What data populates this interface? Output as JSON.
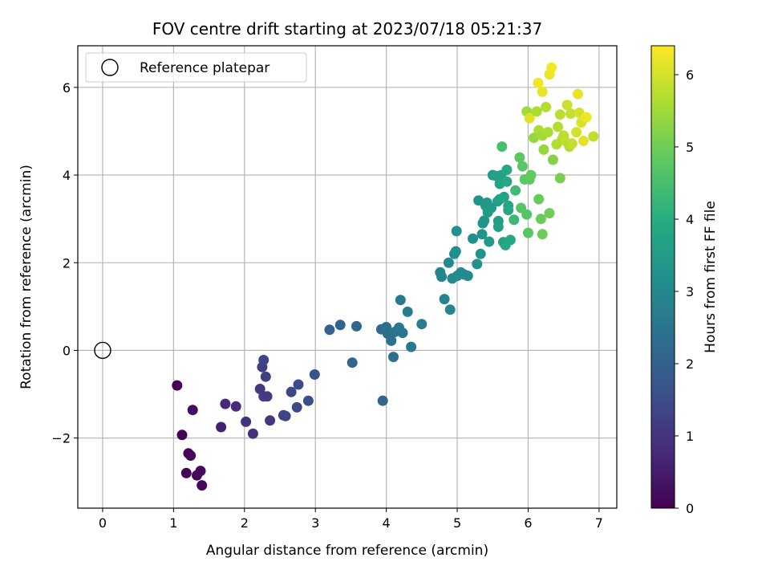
{
  "chart_data": {
    "type": "scatter",
    "title": "FOV centre drift starting at 2023/07/18 05:21:37",
    "xlabel": "Angular distance from reference (arcmin)",
    "ylabel": "Rotation from reference (arcmin)",
    "xlim": [
      -0.35,
      7.25
    ],
    "ylim": [
      -3.6,
      6.95
    ],
    "xticks": [
      0,
      1,
      2,
      3,
      4,
      5,
      6,
      7
    ],
    "yticks": [
      -2,
      0,
      2,
      4,
      6
    ],
    "ytick_labels": [
      "−2",
      "0",
      "2",
      "4",
      "6"
    ],
    "grid": true,
    "legend": {
      "position": "top-left",
      "entries": [
        "Reference platepar"
      ]
    },
    "reference_point": {
      "name": "Reference platepar",
      "x": 0,
      "y": 0
    },
    "colorbar": {
      "label": "Hours from first FF file",
      "range": [
        0,
        6.4
      ],
      "ticks": [
        0,
        1,
        2,
        3,
        4,
        5,
        6
      ],
      "colormap": "viridis"
    },
    "series": [
      {
        "points": [
          [
            1.05,
            -0.8,
            0.02
          ],
          [
            1.12,
            -1.93,
            0.05
          ],
          [
            1.18,
            -2.8,
            0.08
          ],
          [
            1.21,
            -2.35,
            0.1
          ],
          [
            1.24,
            -2.4,
            0.12
          ],
          [
            1.27,
            -1.36,
            0.2
          ],
          [
            1.33,
            -2.85,
            0.15
          ],
          [
            1.38,
            -2.75,
            0.18
          ],
          [
            1.4,
            -3.08,
            0.14
          ],
          [
            1.67,
            -1.75,
            0.6
          ],
          [
            1.73,
            -1.22,
            0.75
          ],
          [
            1.88,
            -1.28,
            0.8
          ],
          [
            2.02,
            -1.63,
            0.95
          ],
          [
            2.12,
            -1.9,
            0.9
          ],
          [
            2.22,
            -0.88,
            1.1
          ],
          [
            2.25,
            -0.38,
            1.2
          ],
          [
            2.27,
            -0.22,
            1.3
          ],
          [
            2.27,
            -1.05,
            1.15
          ],
          [
            2.3,
            -0.6,
            1.25
          ],
          [
            2.32,
            -1.05,
            1.1
          ],
          [
            2.36,
            -1.6,
            1.05
          ],
          [
            2.55,
            -1.48,
            1.3
          ],
          [
            2.58,
            -1.5,
            1.35
          ],
          [
            2.66,
            -0.95,
            1.4
          ],
          [
            2.74,
            -1.3,
            1.45
          ],
          [
            2.76,
            -0.78,
            1.5
          ],
          [
            2.9,
            -1.15,
            1.55
          ],
          [
            2.99,
            -0.55,
            1.65
          ],
          [
            3.2,
            0.47,
            2.0
          ],
          [
            3.35,
            0.58,
            2.05
          ],
          [
            3.52,
            -0.28,
            2.1
          ],
          [
            3.58,
            0.55,
            2.15
          ],
          [
            3.93,
            0.48,
            2.2
          ],
          [
            3.95,
            -1.15,
            2.1
          ],
          [
            4.0,
            0.53,
            2.35
          ],
          [
            4.02,
            0.38,
            2.3
          ],
          [
            4.07,
            0.22,
            2.4
          ],
          [
            4.1,
            -0.15,
            2.4
          ],
          [
            4.12,
            0.42,
            2.45
          ],
          [
            4.16,
            0.45,
            2.5
          ],
          [
            4.18,
            0.52,
            2.55
          ],
          [
            4.2,
            1.15,
            2.6
          ],
          [
            4.23,
            0.4,
            2.5
          ],
          [
            4.3,
            0.88,
            2.65
          ],
          [
            4.35,
            0.08,
            2.6
          ],
          [
            4.5,
            0.6,
            2.7
          ],
          [
            4.76,
            1.78,
            2.9
          ],
          [
            4.78,
            1.68,
            2.95
          ],
          [
            4.82,
            1.17,
            2.85
          ],
          [
            4.88,
            2.0,
            3.0
          ],
          [
            4.9,
            0.93,
            2.9
          ],
          [
            4.93,
            1.64,
            3.0
          ],
          [
            4.96,
            2.2,
            3.1
          ],
          [
            4.98,
            2.26,
            3.15
          ],
          [
            4.99,
            2.72,
            3.2
          ],
          [
            5.0,
            1.7,
            3.1
          ],
          [
            5.05,
            1.78,
            3.15
          ],
          [
            5.1,
            1.73,
            3.1
          ],
          [
            5.15,
            1.7,
            3.05
          ],
          [
            5.22,
            2.55,
            3.2
          ],
          [
            5.28,
            1.97,
            3.25
          ],
          [
            5.3,
            3.42,
            3.3
          ],
          [
            5.33,
            2.2,
            3.3
          ],
          [
            5.35,
            2.65,
            3.35
          ],
          [
            5.36,
            2.9,
            3.35
          ],
          [
            5.38,
            2.96,
            3.35
          ],
          [
            5.4,
            3.3,
            3.45
          ],
          [
            5.42,
            3.37,
            3.4
          ],
          [
            5.43,
            3.15,
            3.5
          ],
          [
            5.45,
            2.48,
            3.45
          ],
          [
            5.48,
            3.25,
            3.45
          ],
          [
            5.5,
            4.0,
            3.5
          ],
          [
            5.55,
            3.98,
            3.65
          ],
          [
            5.57,
            3.4,
            3.55
          ],
          [
            5.58,
            2.95,
            3.6
          ],
          [
            5.58,
            2.82,
            3.6
          ],
          [
            5.6,
            3.45,
            3.65
          ],
          [
            5.6,
            3.8,
            3.7
          ],
          [
            5.62,
            4.0,
            3.7
          ],
          [
            5.63,
            4.65,
            4.5
          ],
          [
            5.65,
            2.47,
            3.7
          ],
          [
            5.66,
            3.5,
            3.75
          ],
          [
            5.68,
            2.4,
            3.8
          ],
          [
            5.7,
            4.12,
            3.8
          ],
          [
            5.7,
            3.85,
            3.8
          ],
          [
            5.72,
            3.3,
            3.8
          ],
          [
            5.72,
            3.2,
            3.85
          ],
          [
            5.75,
            2.52,
            3.9
          ],
          [
            5.8,
            2.98,
            4.3
          ],
          [
            5.82,
            3.65,
            4.4
          ],
          [
            5.88,
            4.4,
            4.8
          ],
          [
            5.9,
            3.25,
            4.7
          ],
          [
            5.92,
            4.2,
            4.75
          ],
          [
            5.95,
            3.9,
            4.8
          ],
          [
            5.98,
            3.1,
            4.7
          ],
          [
            6.0,
            2.68,
            4.75
          ],
          [
            6.02,
            3.9,
            4.8
          ],
          [
            6.04,
            4.0,
            4.85
          ],
          [
            6.15,
            3.45,
            4.9
          ],
          [
            6.18,
            3.0,
            4.95
          ],
          [
            6.2,
            2.65,
            4.95
          ],
          [
            6.3,
            3.13,
            5.0
          ],
          [
            6.35,
            4.35,
            5.2
          ],
          [
            6.45,
            3.93,
            5.1
          ],
          [
            5.98,
            5.45,
            5.5
          ],
          [
            6.02,
            5.3,
            6.1
          ],
          [
            6.08,
            4.85,
            5.4
          ],
          [
            6.12,
            5.45,
            5.6
          ],
          [
            6.14,
            6.1,
            6.3
          ],
          [
            6.15,
            5.02,
            5.6
          ],
          [
            6.2,
            5.9,
            6.2
          ],
          [
            6.2,
            4.9,
            5.55
          ],
          [
            6.22,
            4.58,
            5.4
          ],
          [
            6.25,
            5.55,
            5.7
          ],
          [
            6.28,
            4.98,
            5.6
          ],
          [
            6.3,
            6.3,
            6.25
          ],
          [
            6.33,
            6.45,
            6.3
          ],
          [
            6.4,
            4.7,
            5.65
          ],
          [
            6.42,
            5.1,
            5.7
          ],
          [
            6.45,
            5.38,
            5.75
          ],
          [
            6.48,
            4.82,
            5.7
          ],
          [
            6.5,
            4.9,
            5.75
          ],
          [
            6.52,
            4.78,
            5.8
          ],
          [
            6.55,
            5.6,
            5.9
          ],
          [
            6.58,
            4.65,
            5.7
          ],
          [
            6.6,
            5.4,
            5.85
          ],
          [
            6.62,
            4.72,
            5.85
          ],
          [
            6.68,
            4.98,
            6.0
          ],
          [
            6.7,
            5.85,
            6.2
          ],
          [
            6.72,
            5.42,
            6.0
          ],
          [
            6.75,
            5.2,
            6.05
          ],
          [
            6.78,
            4.78,
            6.15
          ],
          [
            6.82,
            5.32,
            6.25
          ],
          [
            6.92,
            4.88,
            5.8
          ]
        ]
      }
    ]
  }
}
